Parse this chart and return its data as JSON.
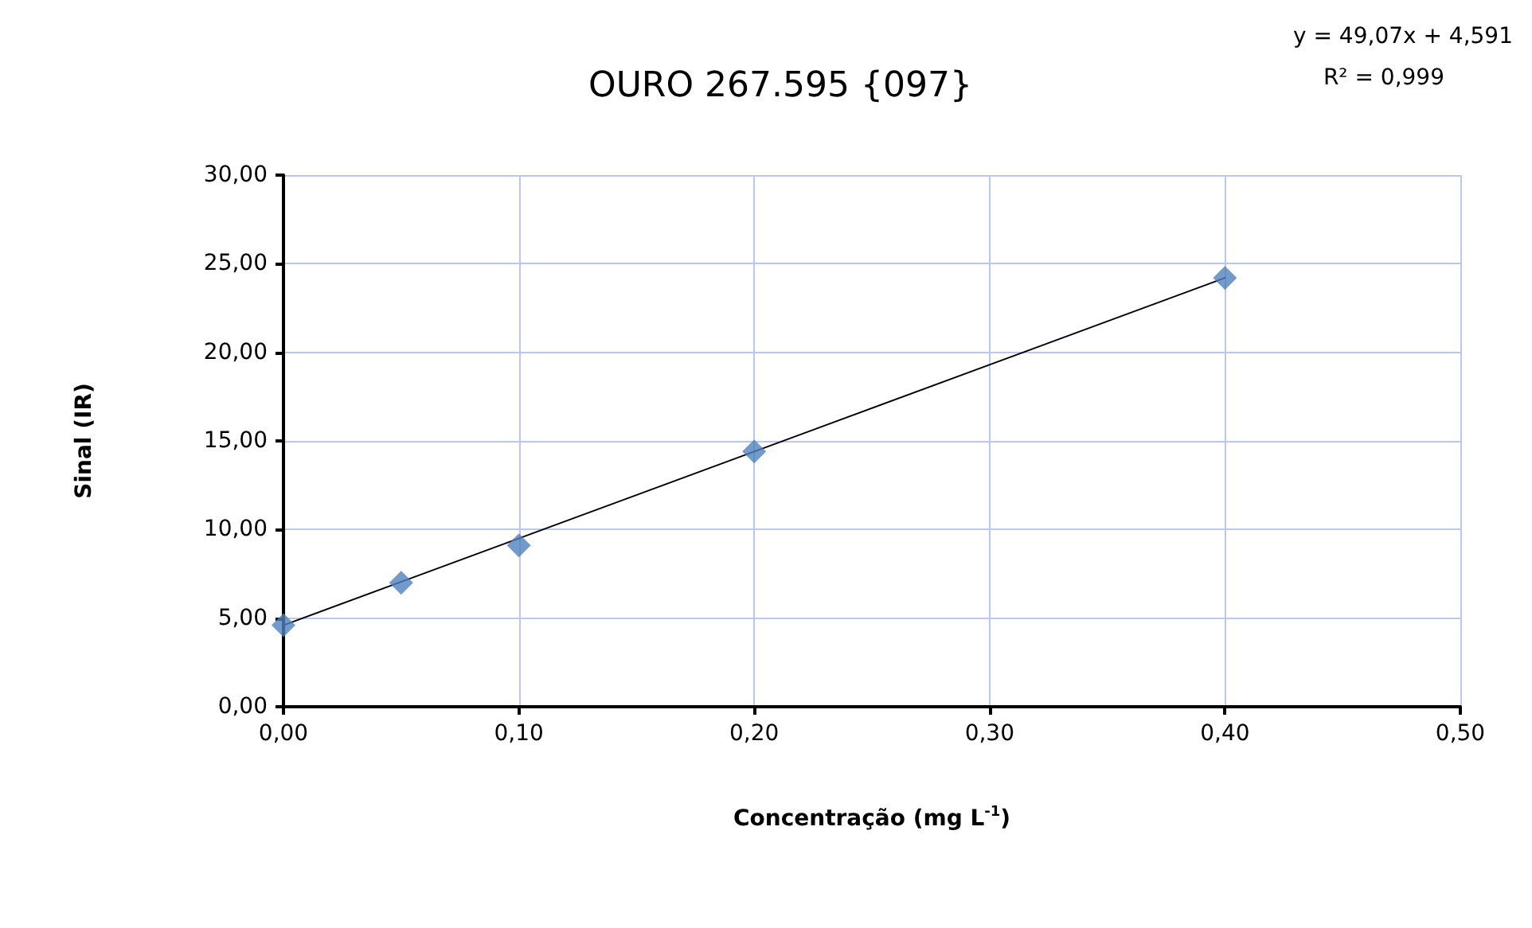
{
  "chart_data": {
    "type": "scatter",
    "title": "OURO 267.595 {097}",
    "xlabel": "Concentração (mg L$^{-1}$)",
    "ylabel": "Sinal (IR)",
    "annotations": [
      "y = 49,07x + 4,591",
      "R² = 0,999"
    ],
    "x": [
      0,
      0.05,
      0.1,
      0.2,
      0.4
    ],
    "series": [
      {
        "type": "scatter",
        "color": "#4f81bd",
        "marker": "diamond",
        "values": [
          4.6,
          7.0,
          9.1,
          14.4,
          24.2
        ]
      },
      {
        "type": "line",
        "color": "#000000",
        "marker": "none",
        "x": [
          0,
          0.4
        ],
        "values": [
          4.6,
          24.2
        ]
      }
    ],
    "xlim": [
      0,
      0.5
    ],
    "xticks": [
      {
        "value": 0,
        "label": "0,00"
      },
      {
        "value": 0.1,
        "label": "0,10"
      },
      {
        "value": 0.2,
        "label": "0,20"
      },
      {
        "value": 0.3,
        "label": "0,30"
      },
      {
        "value": 0.4,
        "label": "0,40"
      },
      {
        "value": 0.5,
        "label": "0,50"
      }
    ],
    "ylim": [
      0,
      30
    ],
    "yticks": [
      {
        "value": 0,
        "label": "0,00"
      },
      {
        "value": 5,
        "label": "5,00"
      },
      {
        "value": 10,
        "label": "10,00"
      },
      {
        "value": 15,
        "label": "15,00"
      },
      {
        "value": 20,
        "label": "20,00"
      },
      {
        "value": 25,
        "label": "25,00"
      },
      {
        "value": 30,
        "label": "30,00"
      }
    ],
    "grid": true
  }
}
